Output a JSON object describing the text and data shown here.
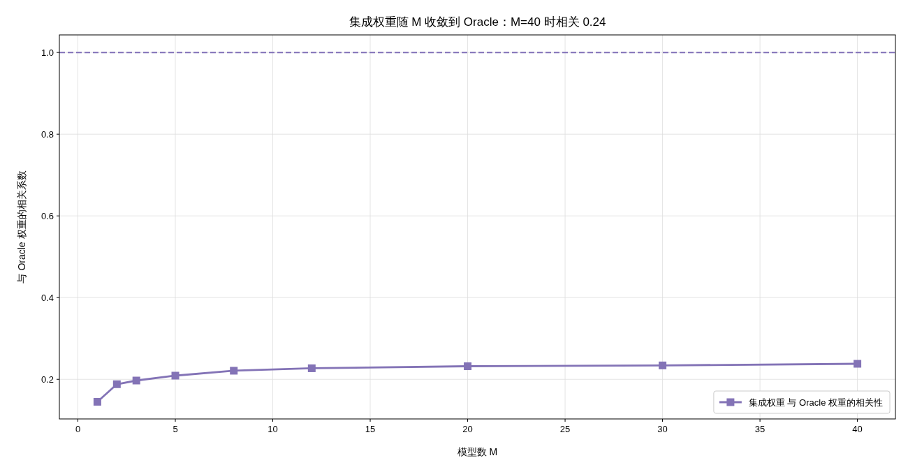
{
  "chart_data": {
    "type": "line",
    "title": "集成权重随 M 收敛到 Oracle：M=40 时相关 0.24",
    "xlabel": "模型数 M",
    "ylabel": "与 Oracle 权重的相关系数",
    "x": [
      1,
      2,
      3,
      5,
      8,
      12,
      20,
      30,
      40
    ],
    "series": [
      {
        "name": "集成权重 与 Oracle 权重的相关性",
        "color": "#8373b6",
        "values": [
          0.145,
          0.188,
          0.197,
          0.209,
          0.221,
          0.227,
          0.232,
          0.234,
          0.238
        ]
      }
    ],
    "xlim": [
      -0.95,
      41.95
    ],
    "ylim": [
      0.103,
      1.043
    ],
    "xticks": [
      0,
      5,
      10,
      15,
      20,
      25,
      30,
      35,
      40
    ],
    "yticks": [
      0.2,
      0.4,
      0.6,
      0.8,
      {
        "value": 1,
        "label": "1.0"
      }
    ],
    "ref_lines": [
      {
        "axis": "y",
        "value": 1,
        "color": "#8070b8",
        "line_style": "dashed"
      }
    ],
    "grid": true,
    "legend": "bottom right",
    "marker": "square",
    "line_style": "solid"
  }
}
